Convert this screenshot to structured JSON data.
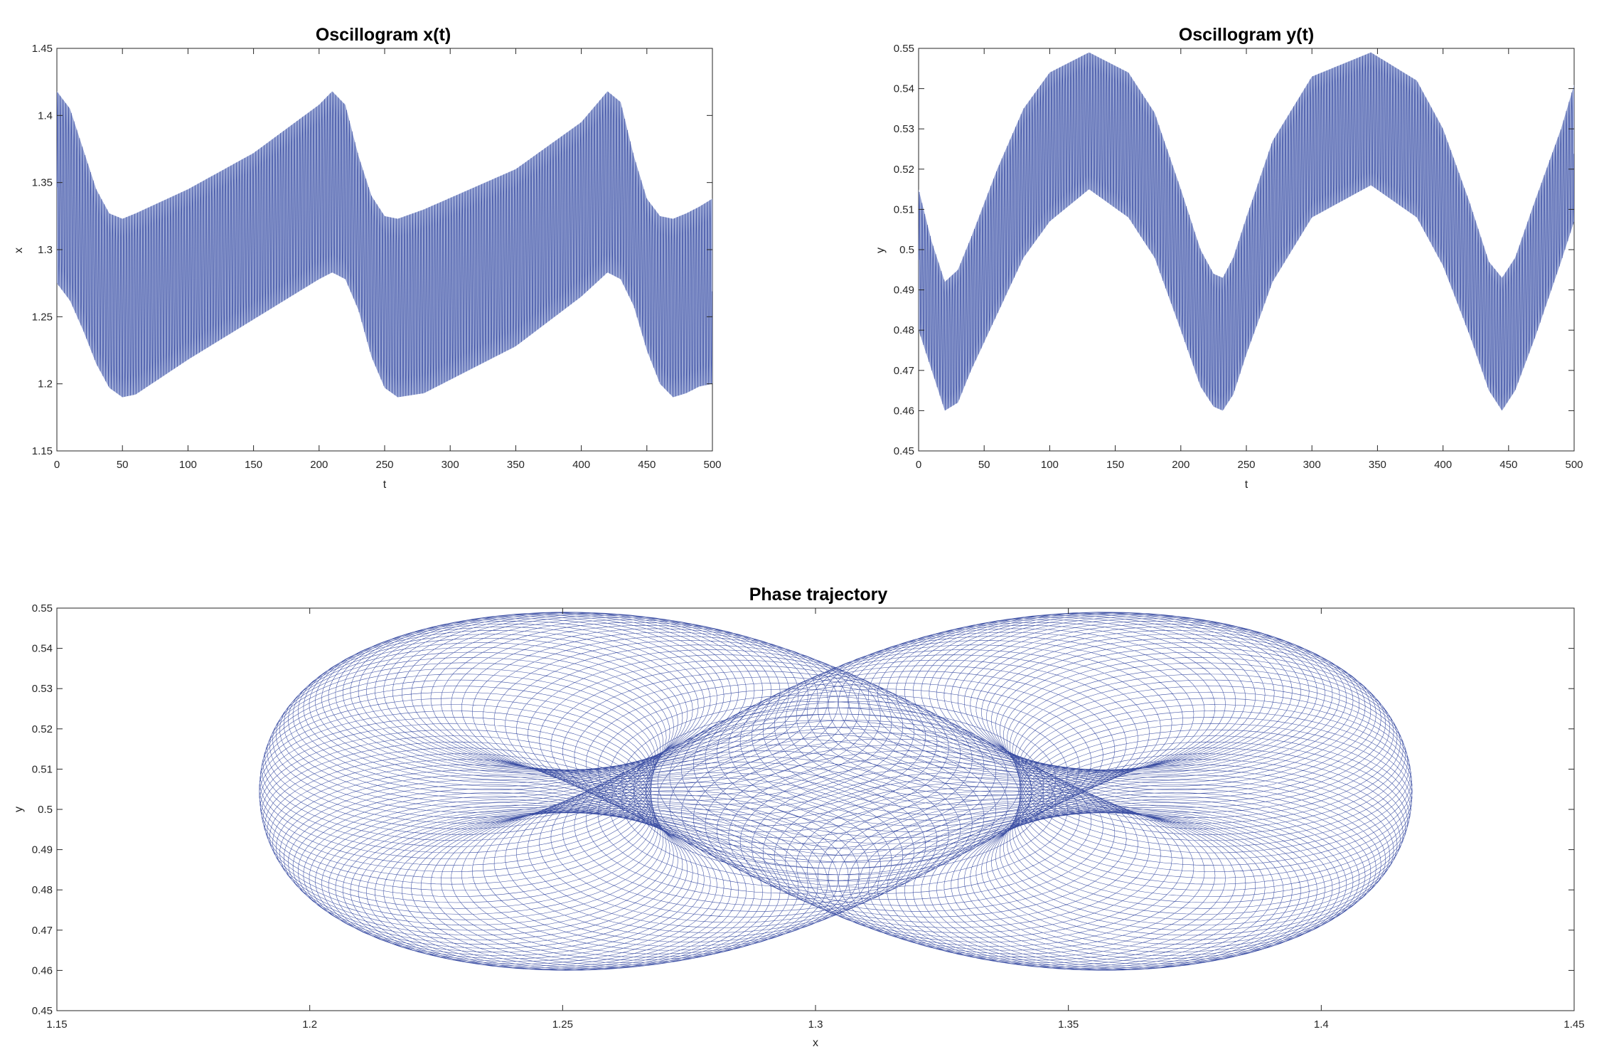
{
  "colors": {
    "series": "#3b4ea3",
    "series_light": "#9aa7d4",
    "axes": "#262626"
  },
  "chart_data": [
    {
      "id": "osc_x",
      "type": "line",
      "title": "Oscillogram x(t)",
      "xlabel": "t",
      "ylabel": "x",
      "xlim": [
        0,
        500
      ],
      "ylim": [
        1.15,
        1.45
      ],
      "xticks": [
        "0",
        "50",
        "100",
        "150",
        "200",
        "250",
        "300",
        "350",
        "400",
        "450",
        "500"
      ],
      "yticks": [
        "1.15",
        "1.2",
        "1.25",
        "1.3",
        "1.35",
        "1.4",
        "1.45"
      ],
      "grid": false,
      "fast_oscillation_period": 2.1,
      "envelope": {
        "t": [
          0,
          10,
          20,
          30,
          40,
          50,
          60,
          100,
          150,
          200,
          210,
          220,
          230,
          240,
          250,
          260,
          280,
          350,
          400,
          420,
          430,
          440,
          450,
          460,
          470,
          480,
          490,
          500
        ],
        "upper": [
          1.418,
          1.405,
          1.375,
          1.345,
          1.327,
          1.323,
          1.327,
          1.345,
          1.372,
          1.408,
          1.418,
          1.408,
          1.37,
          1.34,
          1.325,
          1.323,
          1.33,
          1.36,
          1.395,
          1.418,
          1.41,
          1.37,
          1.338,
          1.325,
          1.323,
          1.327,
          1.332,
          1.338
        ],
        "lower": [
          1.275,
          1.262,
          1.24,
          1.215,
          1.197,
          1.19,
          1.192,
          1.218,
          1.248,
          1.278,
          1.283,
          1.278,
          1.255,
          1.22,
          1.197,
          1.19,
          1.193,
          1.228,
          1.265,
          1.283,
          1.278,
          1.258,
          1.225,
          1.2,
          1.19,
          1.193,
          1.198,
          1.2
        ]
      }
    },
    {
      "id": "osc_y",
      "type": "line",
      "title": "Oscillogram y(t)",
      "xlabel": "t",
      "ylabel": "y",
      "xlim": [
        0,
        500
      ],
      "ylim": [
        0.45,
        0.55
      ],
      "xticks": [
        "0",
        "50",
        "100",
        "150",
        "200",
        "250",
        "300",
        "350",
        "400",
        "450",
        "500"
      ],
      "yticks": [
        "0.45",
        "0.46",
        "0.47",
        "0.48",
        "0.49",
        "0.5",
        "0.51",
        "0.52",
        "0.53",
        "0.54",
        "0.55"
      ],
      "grid": false,
      "fast_oscillation_period": 2.1,
      "envelope": {
        "t": [
          0,
          10,
          20,
          30,
          40,
          60,
          80,
          100,
          130,
          160,
          180,
          200,
          215,
          225,
          232,
          240,
          250,
          270,
          300,
          345,
          380,
          400,
          420,
          435,
          445,
          455,
          470,
          490,
          500
        ],
        "upper": [
          0.515,
          0.502,
          0.492,
          0.495,
          0.503,
          0.52,
          0.535,
          0.544,
          0.549,
          0.544,
          0.534,
          0.515,
          0.5,
          0.494,
          0.493,
          0.498,
          0.508,
          0.527,
          0.543,
          0.549,
          0.542,
          0.53,
          0.512,
          0.497,
          0.493,
          0.498,
          0.512,
          0.53,
          0.541
        ],
        "lower": [
          0.48,
          0.47,
          0.46,
          0.462,
          0.47,
          0.484,
          0.498,
          0.507,
          0.515,
          0.508,
          0.498,
          0.48,
          0.466,
          0.461,
          0.46,
          0.464,
          0.474,
          0.492,
          0.508,
          0.516,
          0.508,
          0.496,
          0.479,
          0.465,
          0.46,
          0.465,
          0.478,
          0.497,
          0.507
        ]
      }
    },
    {
      "id": "phase",
      "type": "line",
      "title": "Phase trajectory",
      "xlabel": "x",
      "ylabel": "y",
      "xlim": [
        1.15,
        1.45
      ],
      "ylim": [
        0.45,
        0.55
      ],
      "xticks": [
        "1.15",
        "1.2",
        "1.25",
        "1.3",
        "1.35",
        "1.4",
        "1.45"
      ],
      "yticks": [
        "0.45",
        "0.46",
        "0.47",
        "0.48",
        "0.49",
        "0.5",
        "0.51",
        "0.52",
        "0.53",
        "0.54",
        "0.55"
      ],
      "grid": false,
      "x_range": [
        1.19,
        1.418
      ],
      "y_range": [
        0.46,
        0.549
      ],
      "lobe_centers": [
        [
          1.245,
          0.51
        ],
        [
          1.345,
          0.51
        ]
      ]
    }
  ]
}
